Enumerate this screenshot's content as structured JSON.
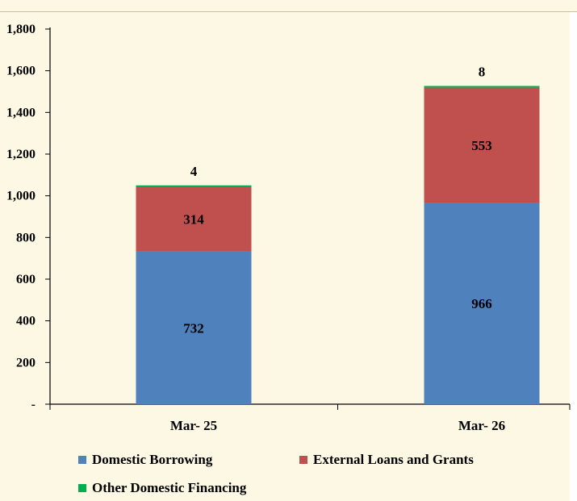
{
  "chart_data": {
    "type": "bar",
    "stacked": true,
    "categories": [
      "Mar- 25",
      "Mar- 26"
    ],
    "series": [
      {
        "name": "Domestic Borrowing",
        "color": "#4f81bd",
        "values": [
          732,
          966
        ]
      },
      {
        "name": "External Loans and Grants",
        "color": "#c0504d",
        "values": [
          314,
          553
        ]
      },
      {
        "name": "Other Domestic Financing",
        "color": "#00b050",
        "values": [
          4,
          8
        ]
      }
    ],
    "ylim": [
      0,
      1800
    ],
    "yticks": [
      0,
      200,
      400,
      600,
      800,
      1000,
      1200,
      1400,
      1600,
      1800
    ],
    "ytick_labels": [
      "-",
      "200",
      "400",
      "600",
      "800",
      "1,000",
      "1,200",
      "1,400",
      "1,600",
      "1,800"
    ],
    "data_labels": [
      [
        "732",
        "966"
      ],
      [
        "314",
        "553"
      ],
      [
        "4",
        "8"
      ]
    ],
    "legend_position": "bottom",
    "title": "",
    "xlabel": "",
    "ylabel": "",
    "grid": false
  },
  "legend": {
    "items": [
      {
        "label": "Domestic Borrowing",
        "color": "#4f81bd"
      },
      {
        "label": "External Loans and Grants",
        "color": "#c0504d"
      },
      {
        "label": "Other Domestic Financing",
        "color": "#00b050"
      }
    ]
  }
}
